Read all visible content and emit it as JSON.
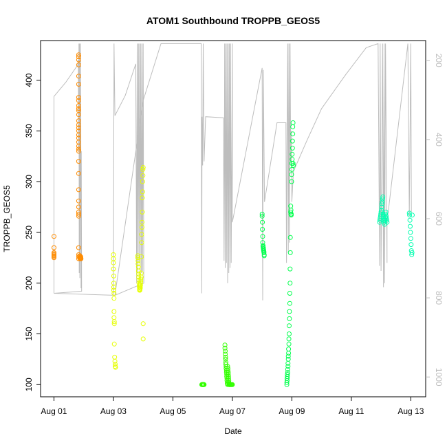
{
  "chart_data": {
    "type": "scatter",
    "title": "ATOM1 Southbound TROPPB_GEOS5",
    "xlabel": "Date",
    "ylabel": "TROPPB_GEOS5",
    "x_ticks": [
      "Aug 01",
      "Aug 03",
      "Aug 05",
      "Aug 07",
      "Aug 09",
      "Aug 11",
      "Aug 13"
    ],
    "x_tick_days": [
      1,
      3,
      5,
      7,
      9,
      11,
      13
    ],
    "xlim_days": [
      0.55,
      13.5
    ],
    "y_ticks": [
      100,
      150,
      200,
      250,
      300,
      350,
      400
    ],
    "ylim": [
      88,
      439
    ],
    "y2_ticks": [
      200,
      400,
      600,
      800,
      1000
    ],
    "y2lim": [
      1050,
      150
    ],
    "grid": false,
    "colors": {
      "orange": "#ff8c00",
      "yellow": "#e6ff00",
      "green": "#33ff00",
      "lightgreen": "#00ff4d",
      "teal": "#00ffb0",
      "flight_track": "#bdbdbd"
    },
    "series": [
      {
        "color": "orange",
        "x": [
          1.0,
          1.0,
          1.0,
          1.0,
          1.0,
          1.0,
          1.0,
          1.0,
          1.83,
          1.83,
          1.83,
          1.83,
          1.83,
          1.83,
          1.83,
          1.83,
          1.83,
          1.83,
          1.83,
          1.83,
          1.83,
          1.83,
          1.83,
          1.83,
          1.83,
          1.83,
          1.83,
          1.83,
          1.83,
          1.83,
          1.83,
          1.83,
          1.83,
          1.83,
          1.83,
          1.83,
          1.83,
          1.83,
          1.83,
          1.83,
          1.83,
          1.83,
          1.87,
          1.87,
          1.87,
          1.88,
          1.88,
          1.89,
          1.9,
          1.9,
          1.9,
          1.91
        ],
        "y": [
          246,
          235,
          230,
          229,
          228,
          227,
          226,
          225,
          425,
          423,
          420,
          415,
          404,
          396,
          383,
          380,
          375,
          372,
          370,
          366,
          360,
          356,
          353,
          350,
          346,
          343,
          339,
          335,
          332,
          330,
          320,
          308,
          292,
          281,
          275,
          270,
          268,
          266,
          235,
          228,
          226,
          224,
          227,
          226,
          225,
          225,
          224,
          224,
          225,
          226,
          225,
          224
        ]
      },
      {
        "color": "yellow",
        "x": [
          3.0,
          3.0,
          3.0,
          3.0,
          3.01,
          3.01,
          3.01,
          3.01,
          3.02,
          3.02,
          3.02,
          3.02,
          3.03,
          3.03,
          3.03,
          3.04,
          3.05,
          3.06,
          3.06,
          3.07,
          3.82,
          3.82,
          3.83,
          3.83,
          3.84,
          3.84,
          3.85,
          3.85,
          3.86,
          3.86,
          3.87,
          3.87,
          3.88,
          3.88,
          3.89,
          3.89,
          3.9,
          3.9,
          3.91,
          3.91,
          3.92,
          3.92,
          3.93,
          3.93,
          3.94,
          3.95,
          3.95,
          3.96,
          3.96,
          3.97,
          3.97,
          3.98,
          3.98,
          3.99,
          3.99,
          4.0,
          4.0,
          4.0
        ],
        "y": [
          228,
          224,
          220,
          214,
          207,
          200,
          196,
          193,
          190,
          185,
          172,
          166,
          162,
          160,
          140,
          127,
          123,
          120,
          118,
          117,
          227,
          225,
          222,
          219,
          216,
          212,
          209,
          206,
          203,
          200,
          198,
          196,
          194,
          193,
          193,
          194,
          195,
          196,
          198,
          200,
          202,
          204,
          206,
          210,
          226,
          240,
          248,
          255,
          260,
          270,
          284,
          290,
          300,
          306,
          312,
          314,
          160,
          145
        ]
      },
      {
        "color": "green",
        "x": [
          5.97,
          5.98,
          5.99,
          6.0,
          6.01,
          6.02,
          6.03,
          6.04,
          6.05,
          6.75,
          6.75,
          6.76,
          6.76,
          6.77,
          6.77,
          6.78,
          6.78,
          6.79,
          6.79,
          6.8,
          6.8,
          6.81,
          6.81,
          6.82,
          6.82,
          6.83,
          6.83,
          6.84,
          6.84,
          6.85,
          6.85,
          6.86,
          6.86,
          6.87,
          6.87,
          6.88,
          6.88,
          6.89,
          6.89,
          6.9,
          6.92,
          6.94,
          6.96,
          6.98,
          7.0
        ],
        "y": [
          100,
          100,
          100,
          100,
          100,
          100,
          100,
          100,
          100,
          139,
          136,
          133,
          130,
          127,
          125,
          122,
          120,
          118,
          116,
          114,
          112,
          110,
          108,
          106,
          104,
          102,
          101,
          100,
          118,
          116,
          114,
          112,
          110,
          108,
          106,
          104,
          102,
          101,
          100,
          100,
          100,
          100,
          100,
          100,
          100
        ]
      },
      {
        "color": "lightgreen",
        "x": [
          8.0,
          8.0,
          8.01,
          8.01,
          8.02,
          8.02,
          8.03,
          8.03,
          8.04,
          8.04,
          8.05,
          8.05,
          8.06,
          8.06,
          8.07,
          8.07,
          8.83,
          8.83,
          8.84,
          8.84,
          8.85,
          8.85,
          8.86,
          8.86,
          8.87,
          8.87,
          8.88,
          8.88,
          8.89,
          8.89,
          8.9,
          8.9,
          8.91,
          8.91,
          8.92,
          8.92,
          8.93,
          8.93,
          8.94,
          8.94,
          8.95,
          8.95,
          8.96,
          8.96,
          8.97,
          8.97,
          8.98,
          8.98,
          8.99,
          8.99,
          9.0,
          9.0,
          9.01,
          9.01,
          9.02,
          9.02,
          9.03,
          9.03,
          9.04,
          9.04,
          9.05
        ],
        "y": [
          268,
          266,
          260,
          253,
          246,
          240,
          237,
          236,
          235,
          234,
          233,
          232,
          231,
          230,
          228,
          227,
          100,
          102,
          104,
          106,
          108,
          110,
          112,
          115,
          118,
          121,
          125,
          128,
          131,
          135,
          140,
          145,
          150,
          158,
          165,
          172,
          180,
          190,
          200,
          214,
          230,
          245,
          270,
          276,
          272,
          268,
          267,
          268,
          300,
          307,
          312,
          318,
          322,
          327,
          333,
          340,
          347,
          354,
          358,
          318,
          316
        ]
      },
      {
        "color": "teal",
        "x": [
          11.95,
          11.96,
          11.97,
          11.98,
          11.99,
          12.0,
          12.01,
          12.02,
          12.03,
          12.04,
          12.05,
          12.06,
          12.07,
          12.08,
          12.09,
          12.1,
          12.11,
          12.12,
          12.13,
          12.14,
          12.15,
          12.16,
          12.17,
          12.18,
          12.19,
          12.2,
          12.95,
          12.96,
          12.97,
          12.98,
          12.99,
          13.0,
          13.01,
          13.02,
          13.03,
          13.04,
          13.05
        ],
        "y": [
          260,
          262,
          264,
          266,
          268,
          270,
          272,
          275,
          278,
          280,
          283,
          285,
          268,
          266,
          264,
          262,
          260,
          258,
          262,
          265,
          268,
          270,
          266,
          264,
          262,
          260,
          269,
          267,
          262,
          256,
          250,
          244,
          238,
          232,
          228,
          230,
          267
        ]
      }
    ],
    "flight_track": [
      [
        1.0,
        190
      ],
      [
        1.0,
        265
      ],
      [
        1.0,
        384
      ],
      [
        1.4,
        398
      ],
      [
        1.8,
        415
      ],
      [
        1.82,
        420
      ],
      [
        1.83,
        330
      ],
      [
        1.84,
        436
      ],
      [
        1.85,
        210
      ],
      [
        1.86,
        436
      ],
      [
        1.87,
        205
      ],
      [
        1.9,
        436
      ],
      [
        1.91,
        195
      ],
      [
        1.92,
        330
      ],
      [
        1.93,
        192
      ],
      [
        1.0,
        190
      ],
      [
        3.0,
        188
      ],
      [
        3.02,
        436
      ],
      [
        3.05,
        365
      ],
      [
        3.4,
        385
      ],
      [
        3.75,
        416
      ],
      [
        3.78,
        200
      ],
      [
        3.8,
        436
      ],
      [
        3.82,
        210
      ],
      [
        3.84,
        436
      ],
      [
        3.86,
        220
      ],
      [
        3.88,
        436
      ],
      [
        3.9,
        200
      ],
      [
        3.92,
        436
      ],
      [
        3.94,
        210
      ],
      [
        3.96,
        436
      ],
      [
        3.98,
        212
      ],
      [
        4.0,
        436
      ],
      [
        4.02,
        200
      ],
      [
        3.05,
        188
      ],
      [
        4.0,
        380
      ],
      [
        4.6,
        436
      ],
      [
        5.95,
        436
      ],
      [
        5.97,
        190
      ],
      [
        5.98,
        364
      ],
      [
        6.0,
        316
      ],
      [
        6.02,
        436
      ],
      [
        6.05,
        320
      ],
      [
        6.1,
        364
      ],
      [
        6.7,
        363
      ],
      [
        6.72,
        222
      ],
      [
        6.74,
        436
      ],
      [
        6.76,
        215
      ],
      [
        6.78,
        436
      ],
      [
        6.8,
        220
      ],
      [
        6.82,
        436
      ],
      [
        6.84,
        200
      ],
      [
        6.86,
        436
      ],
      [
        6.88,
        210
      ],
      [
        6.9,
        436
      ],
      [
        6.92,
        215
      ],
      [
        6.94,
        436
      ],
      [
        6.96,
        220
      ],
      [
        7.0,
        436
      ],
      [
        7.0,
        260
      ],
      [
        8.0,
        412
      ],
      [
        8.02,
        183
      ],
      [
        8.04,
        410
      ],
      [
        8.08,
        280
      ],
      [
        8.5,
        358
      ],
      [
        8.8,
        358
      ],
      [
        8.82,
        220
      ],
      [
        8.84,
        350
      ],
      [
        8.86,
        436
      ],
      [
        8.88,
        230
      ],
      [
        8.9,
        436
      ],
      [
        8.92,
        240
      ],
      [
        8.94,
        436
      ],
      [
        8.96,
        320
      ],
      [
        8.98,
        350
      ],
      [
        9.0,
        280
      ],
      [
        9.05,
        310
      ],
      [
        9.5,
        340
      ],
      [
        10.0,
        372
      ],
      [
        10.8,
        405
      ],
      [
        11.5,
        432
      ],
      [
        11.9,
        436
      ],
      [
        11.95,
        217
      ],
      [
        11.97,
        436
      ],
      [
        12.0,
        212
      ],
      [
        12.05,
        436
      ],
      [
        12.08,
        196
      ],
      [
        12.1,
        436
      ],
      [
        12.12,
        200
      ],
      [
        12.15,
        436
      ],
      [
        12.2,
        220
      ],
      [
        12.2,
        260
      ],
      [
        12.9,
        436
      ],
      [
        12.95,
        266
      ],
      [
        13.0,
        436
      ],
      [
        13.02,
        270
      ]
    ]
  }
}
